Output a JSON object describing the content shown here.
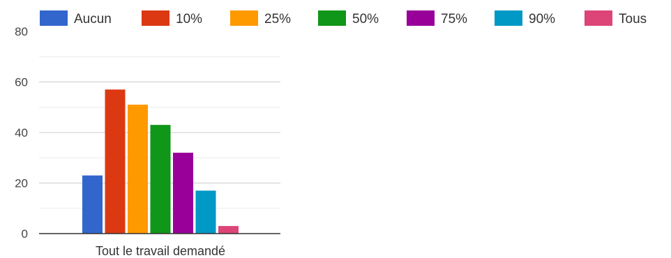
{
  "chart_data": {
    "type": "bar",
    "title": "",
    "xlabel": "",
    "ylabel": "",
    "categories": [
      "Tout le travail demandé"
    ],
    "series": [
      {
        "name": "Aucun",
        "values": [
          23
        ],
        "color": "#3366cc"
      },
      {
        "name": "10%",
        "values": [
          57
        ],
        "color": "#dc3912"
      },
      {
        "name": "25%",
        "values": [
          51
        ],
        "color": "#ff9900"
      },
      {
        "name": "50%",
        "values": [
          43
        ],
        "color": "#109618"
      },
      {
        "name": "75%",
        "values": [
          32
        ],
        "color": "#990099"
      },
      {
        "name": "90%",
        "values": [
          17
        ],
        "color": "#0099c6"
      },
      {
        "name": "Tous",
        "values": [
          3
        ],
        "color": "#dd4477"
      }
    ],
    "ylim": [
      0,
      80
    ],
    "yticks": [
      "0",
      "20",
      "40",
      "60",
      "80"
    ],
    "grid": true,
    "legend_position": "top"
  }
}
